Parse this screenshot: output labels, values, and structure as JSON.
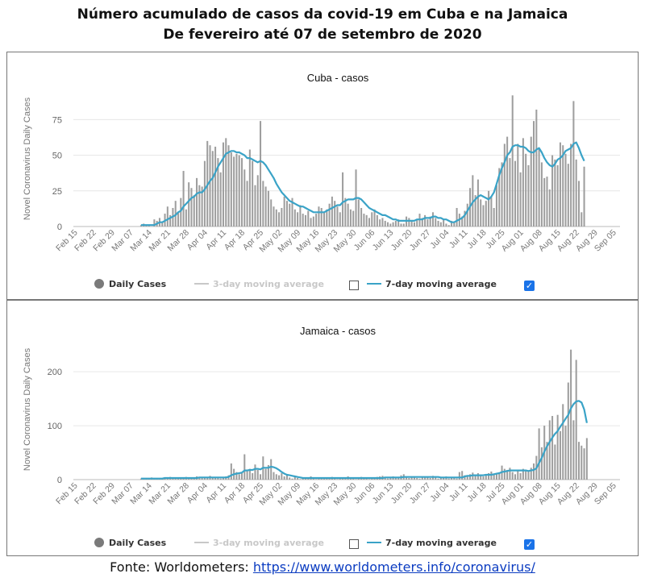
{
  "header": {
    "title_line1": "Número acumulado de casos da covid-19 em Cuba e na Jamaica",
    "title_line2": "De fevereiro até 07 de setembro de 2020"
  },
  "footer": {
    "source_label": "Fonte: Worldometers: ",
    "source_url": "https://www.worldometers.info/coronavirus/"
  },
  "legend": {
    "daily_cases": "Daily Cases",
    "avg3": "3-day moving average",
    "avg7": "7-day moving average",
    "avg3_checked": false,
    "avg7_checked": true
  },
  "colors": {
    "bars": "#9e9e9e",
    "line": "#3aa3c7",
    "legend_disabled": "#c8c8c8",
    "checkbox": "#1a73e8",
    "link": "#0b3cc1"
  },
  "chart_data": [
    {
      "type": "bar",
      "title": "Cuba - casos",
      "ylabel": "Novel Coronavirus Daily Cases",
      "ylim": [
        0,
        95
      ],
      "yticks": [
        0,
        25,
        50,
        75
      ],
      "x_tick_labels": [
        "Feb 15",
        "Feb 22",
        "Feb 29",
        "Mar 07",
        "Mar 14",
        "Mar 21",
        "Mar 28",
        "Apr 04",
        "Apr 11",
        "Apr 18",
        "Apr 25",
        "May 02",
        "May 09",
        "May 16",
        "May 23",
        "May 30",
        "Jun 06",
        "Jun 13",
        "Jun 20",
        "Jun 27",
        "Jul 04",
        "Jul 11",
        "Jul 18",
        "Jul 25",
        "Aug 01",
        "Aug 08",
        "Aug 15",
        "Aug 22",
        "Aug 29",
        "Sep 05"
      ],
      "x_start": "2020-02-15",
      "daily_cases_start": "2020-03-11",
      "series": [
        {
          "name": "Daily Cases",
          "values": [
            1,
            2,
            1,
            1,
            0,
            5,
            4,
            6,
            3,
            9,
            14,
            8,
            13,
            18,
            10,
            20,
            39,
            12,
            31,
            27,
            22,
            34,
            29,
            28,
            46,
            60,
            57,
            53,
            56,
            48,
            38,
            59,
            62,
            57,
            52,
            49,
            51,
            50,
            48,
            40,
            32,
            54,
            46,
            29,
            36,
            74,
            32,
            28,
            25,
            19,
            14,
            12,
            10,
            13,
            21,
            18,
            16,
            20,
            12,
            10,
            15,
            9,
            8,
            11,
            6,
            7,
            9,
            14,
            13,
            10,
            12,
            16,
            21,
            18,
            14,
            10,
            38,
            20,
            16,
            12,
            11,
            40,
            19,
            13,
            9,
            8,
            6,
            10,
            12,
            8,
            5,
            6,
            4,
            3,
            2,
            3,
            4,
            5,
            2,
            2,
            7,
            6,
            4,
            3,
            5,
            9,
            6,
            8,
            5,
            7,
            10,
            6,
            4,
            3,
            5,
            2,
            1,
            4,
            3,
            13,
            9,
            7,
            11,
            16,
            27,
            36,
            22,
            33,
            19,
            15,
            18,
            25,
            21,
            13,
            29,
            41,
            45,
            58,
            63,
            48,
            92,
            46,
            58,
            38,
            62,
            51,
            43,
            63,
            74,
            82,
            55,
            45,
            34,
            35,
            26,
            50,
            47,
            43,
            59,
            57,
            51,
            44,
            58,
            88,
            47,
            32,
            10,
            42
          ]
        },
        {
          "name": "7-day moving average",
          "values": [
            1,
            1,
            1,
            1,
            1,
            1,
            2,
            3,
            3,
            4,
            5,
            6,
            7,
            8,
            10,
            11,
            14,
            16,
            18,
            20,
            21,
            23,
            24,
            24,
            26,
            29,
            32,
            34,
            38,
            42,
            45,
            48,
            51,
            52,
            53,
            53,
            52,
            52,
            51,
            50,
            48,
            48,
            47,
            46,
            45,
            46,
            45,
            43,
            40,
            37,
            34,
            30,
            27,
            24,
            22,
            20,
            18,
            17,
            16,
            15,
            14,
            14,
            13,
            12,
            11,
            10,
            10,
            10,
            10,
            10,
            11,
            12,
            13,
            14,
            15,
            15,
            17,
            18,
            19,
            19,
            19,
            20,
            20,
            19,
            17,
            15,
            13,
            12,
            11,
            10,
            9,
            8,
            8,
            7,
            6,
            5,
            5,
            4,
            4,
            4,
            4,
            4,
            4,
            4,
            5,
            5,
            5,
            6,
            6,
            6,
            7,
            7,
            6,
            6,
            5,
            5,
            4,
            3,
            3,
            4,
            5,
            6,
            8,
            11,
            14,
            17,
            19,
            21,
            22,
            21,
            20,
            19,
            21,
            24,
            30,
            36,
            41,
            45,
            50,
            52,
            56,
            57,
            57,
            56,
            56,
            55,
            53,
            52,
            52,
            54,
            55,
            52,
            48,
            45,
            43,
            42,
            44,
            47,
            48,
            50,
            53,
            54,
            55,
            58,
            59,
            55,
            50,
            46
          ]
        }
      ]
    },
    {
      "type": "bar",
      "title": "Jamaica - casos",
      "ylabel": "Novel Coronavirus Daily Cases",
      "ylim": [
        0,
        260
      ],
      "yticks": [
        0,
        100,
        200
      ],
      "x_tick_labels": [
        "Feb 15",
        "Feb 22",
        "Feb 29",
        "Mar 07",
        "Mar 14",
        "Mar 21",
        "Mar 28",
        "Apr 04",
        "Apr 11",
        "Apr 18",
        "Apr 25",
        "May 02",
        "May 09",
        "May 16",
        "May 23",
        "May 30",
        "Jun 06",
        "Jun 13",
        "Jun 20",
        "Jun 27",
        "Jul 04",
        "Jul 11",
        "Jul 18",
        "Jul 25",
        "Aug 01",
        "Aug 08",
        "Aug 15",
        "Aug 22",
        "Aug 29",
        "Sep 05"
      ],
      "x_start": "2020-02-15",
      "daily_cases_start": "2020-03-11",
      "series": [
        {
          "name": "Daily Cases",
          "values": [
            2,
            3,
            1,
            2,
            4,
            2,
            1,
            3,
            2,
            4,
            3,
            5,
            2,
            3,
            4,
            2,
            3,
            5,
            4,
            3,
            2,
            6,
            4,
            3,
            5,
            4,
            7,
            3,
            5,
            4,
            2,
            3,
            6,
            8,
            30,
            20,
            14,
            10,
            12,
            47,
            16,
            20,
            12,
            28,
            18,
            10,
            43,
            20,
            27,
            38,
            14,
            10,
            8,
            12,
            6,
            10,
            4,
            2,
            5,
            3,
            1,
            4,
            2,
            2,
            6,
            3,
            1,
            2,
            3,
            2,
            4,
            3,
            5,
            2,
            1,
            3,
            2,
            4,
            6,
            3,
            2,
            1,
            3,
            5,
            2,
            4,
            1,
            2,
            3,
            5,
            6,
            7,
            4,
            2,
            3,
            6,
            4,
            3,
            8,
            10,
            5,
            3,
            4,
            6,
            3,
            2,
            5,
            4,
            6,
            3,
            7,
            4,
            2,
            5,
            3,
            6,
            2,
            4,
            3,
            2,
            14,
            16,
            8,
            6,
            10,
            13,
            9,
            12,
            8,
            6,
            10,
            12,
            15,
            9,
            11,
            13,
            26,
            20,
            18,
            22,
            14,
            10,
            16,
            12,
            20,
            18,
            15,
            22,
            30,
            44,
            95,
            60,
            100,
            70,
            110,
            118,
            65,
            120,
            90,
            140,
            100,
            180,
            241,
            110,
            222,
            70,
            63,
            58,
            77
          ]
        },
        {
          "name": "7-day moving average",
          "values": [
            2,
            2,
            2,
            2,
            2,
            2,
            2,
            2,
            2,
            3,
            3,
            3,
            3,
            3,
            3,
            3,
            3,
            3,
            3,
            3,
            3,
            3,
            4,
            4,
            4,
            4,
            4,
            4,
            4,
            4,
            4,
            4,
            4,
            5,
            8,
            10,
            11,
            12,
            13,
            17,
            17,
            18,
            18,
            20,
            20,
            19,
            22,
            22,
            22,
            24,
            23,
            21,
            18,
            14,
            11,
            9,
            8,
            7,
            6,
            5,
            4,
            3,
            3,
            3,
            3,
            3,
            3,
            3,
            3,
            3,
            3,
            3,
            3,
            3,
            3,
            3,
            3,
            3,
            3,
            3,
            3,
            3,
            3,
            3,
            3,
            3,
            3,
            3,
            3,
            3,
            3,
            3,
            4,
            4,
            4,
            4,
            4,
            4,
            4,
            5,
            5,
            5,
            5,
            5,
            5,
            5,
            5,
            5,
            5,
            5,
            5,
            5,
            5,
            4,
            4,
            4,
            4,
            4,
            4,
            4,
            4,
            4,
            6,
            7,
            7,
            8,
            8,
            8,
            8,
            8,
            9,
            9,
            9,
            10,
            11,
            12,
            14,
            15,
            16,
            17,
            17,
            17,
            17,
            17,
            17,
            17,
            16,
            17,
            18,
            21,
            31,
            40,
            52,
            62,
            70,
            78,
            85,
            90,
            98,
            105,
            113,
            120,
            132,
            140,
            145,
            146,
            143,
            130,
            105
          ]
        }
      ]
    }
  ]
}
